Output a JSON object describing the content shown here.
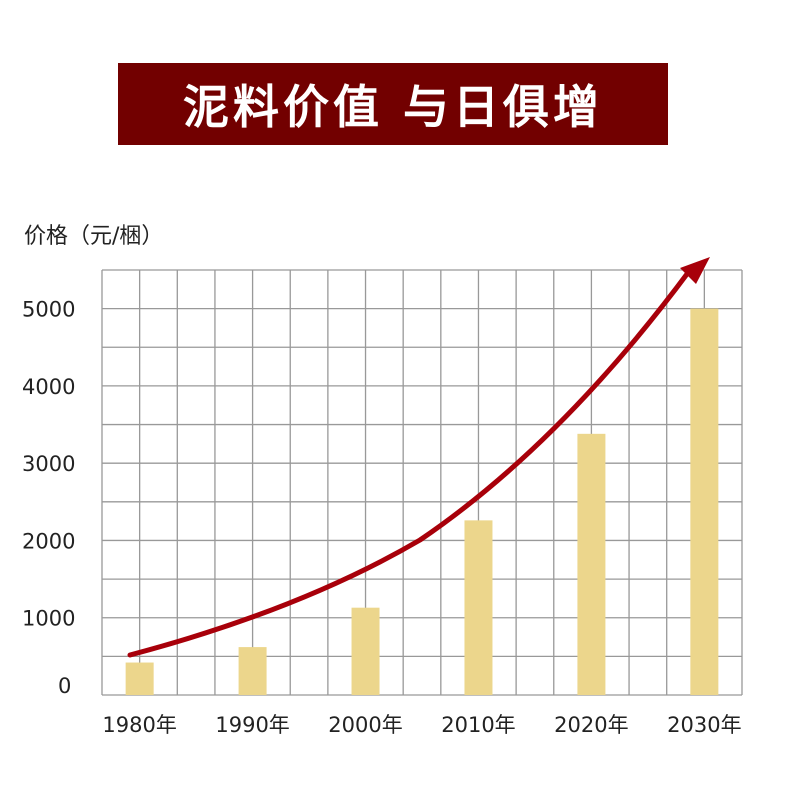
{
  "title": "泥料价值 与日俱增",
  "chart_data": {
    "type": "bar",
    "title": "泥料价值 与日俱增",
    "ylabel": "价格（元/梱）",
    "xlabel": "",
    "categories": [
      "1980年",
      "1990年",
      "2000年",
      "2010年",
      "2020年",
      "2030年"
    ],
    "values": [
      420,
      620,
      1130,
      2260,
      3380,
      5000
    ],
    "yticks": [
      "0",
      "1000",
      "2000",
      "3000",
      "4000",
      "5000"
    ],
    "ylim": [
      0,
      5500
    ],
    "grid": true,
    "trend_arrow": true,
    "colors": {
      "bar": "#ecd68c",
      "arrow": "#a8000a",
      "banner": "#720000",
      "grid": "#999999"
    }
  }
}
